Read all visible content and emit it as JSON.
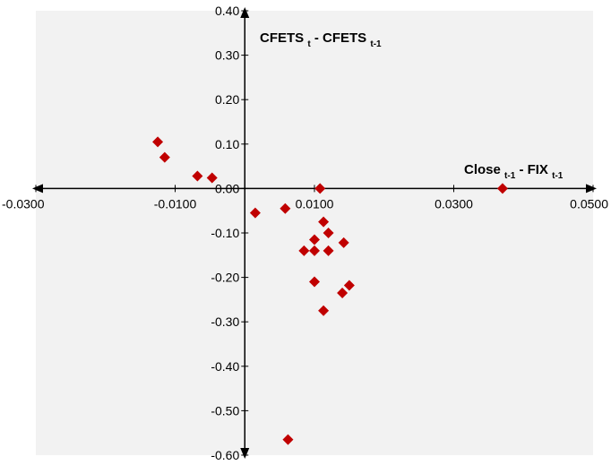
{
  "chart_data": {
    "type": "scatter",
    "title": "",
    "xlabel": {
      "main": "Close",
      "sub1": "t-1",
      "sep": " - FIX",
      "sub2": "t-1"
    },
    "ylabel": {
      "main": "CFETS",
      "sub1": "t",
      "sep": " - CFETS",
      "sub2": "t-1"
    },
    "xlim": [
      -0.03,
      0.05
    ],
    "ylim": [
      -0.6,
      0.4
    ],
    "x_ticks": [
      -0.03,
      -0.01,
      0.01,
      0.03,
      0.05
    ],
    "x_tick_labels": [
      "-0.0300",
      "-0.0100",
      "0.0100",
      "0.0300",
      "0.0500"
    ],
    "y_ticks": [
      0.4,
      0.3,
      0.2,
      0.1,
      0.0,
      -0.1,
      -0.2,
      -0.3,
      -0.4,
      -0.5,
      -0.6
    ],
    "y_tick_labels": [
      "0.40",
      "0.30",
      "0.20",
      "0.10",
      "0.00",
      "-0.10",
      "-0.20",
      "-0.30",
      "-0.40",
      "-0.50",
      "-0.60"
    ],
    "grid": false,
    "marker": "diamond",
    "marker_color": "#c00000",
    "plot_background": "#f2f2f2",
    "points": [
      {
        "x": -0.0125,
        "y": 0.105
      },
      {
        "x": -0.0115,
        "y": 0.07
      },
      {
        "x": -0.0068,
        "y": 0.028
      },
      {
        "x": -0.0047,
        "y": 0.024
      },
      {
        "x": 0.0015,
        "y": -0.055
      },
      {
        "x": 0.0058,
        "y": -0.045
      },
      {
        "x": 0.0062,
        "y": -0.565
      },
      {
        "x": 0.0085,
        "y": -0.14
      },
      {
        "x": 0.01,
        "y": -0.14
      },
      {
        "x": 0.01,
        "y": -0.115
      },
      {
        "x": 0.01,
        "y": -0.21
      },
      {
        "x": 0.0108,
        "y": 0.0
      },
      {
        "x": 0.0113,
        "y": -0.075
      },
      {
        "x": 0.0113,
        "y": -0.275
      },
      {
        "x": 0.012,
        "y": -0.1
      },
      {
        "x": 0.012,
        "y": -0.14
      },
      {
        "x": 0.014,
        "y": -0.235
      },
      {
        "x": 0.0142,
        "y": -0.122
      },
      {
        "x": 0.015,
        "y": -0.218
      },
      {
        "x": 0.037,
        "y": 0.0
      }
    ]
  }
}
